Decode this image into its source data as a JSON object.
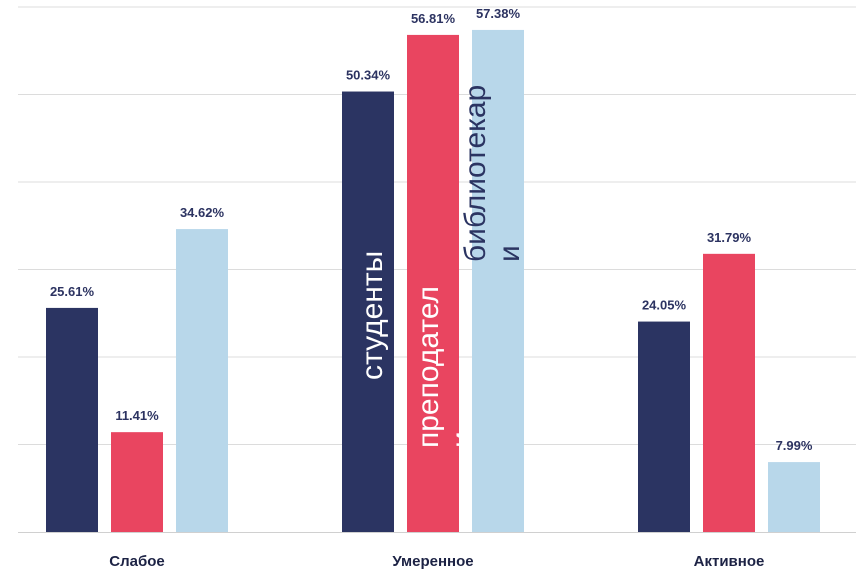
{
  "chart_data": {
    "type": "bar",
    "categories": [
      "Слабое",
      "Умеренное",
      "Активное"
    ],
    "series": [
      {
        "name": "студенты",
        "color": "#2b3462",
        "values": [
          25.61,
          50.34,
          24.05
        ],
        "labels": [
          "25.61%",
          "50.34%",
          "24.05%"
        ]
      },
      {
        "name": "преподатели",
        "color": "#e94560",
        "values": [
          11.41,
          56.81,
          31.79
        ],
        "labels": [
          "11.41%",
          "56.81%",
          "31.79%"
        ]
      },
      {
        "name": "библиотекари",
        "color": "#b8d7ea",
        "values": [
          34.62,
          57.38,
          7.99
        ],
        "labels": [
          "34.62%",
          "57.38%",
          "7.99%"
        ]
      }
    ],
    "series_label_lines": [
      [
        "студенты"
      ],
      [
        "преподател",
        "и"
      ],
      [
        "библиотекар",
        "и"
      ]
    ],
    "ylim": [
      0,
      60
    ],
    "grid": true,
    "title": "",
    "xlabel": "",
    "ylabel": ""
  }
}
